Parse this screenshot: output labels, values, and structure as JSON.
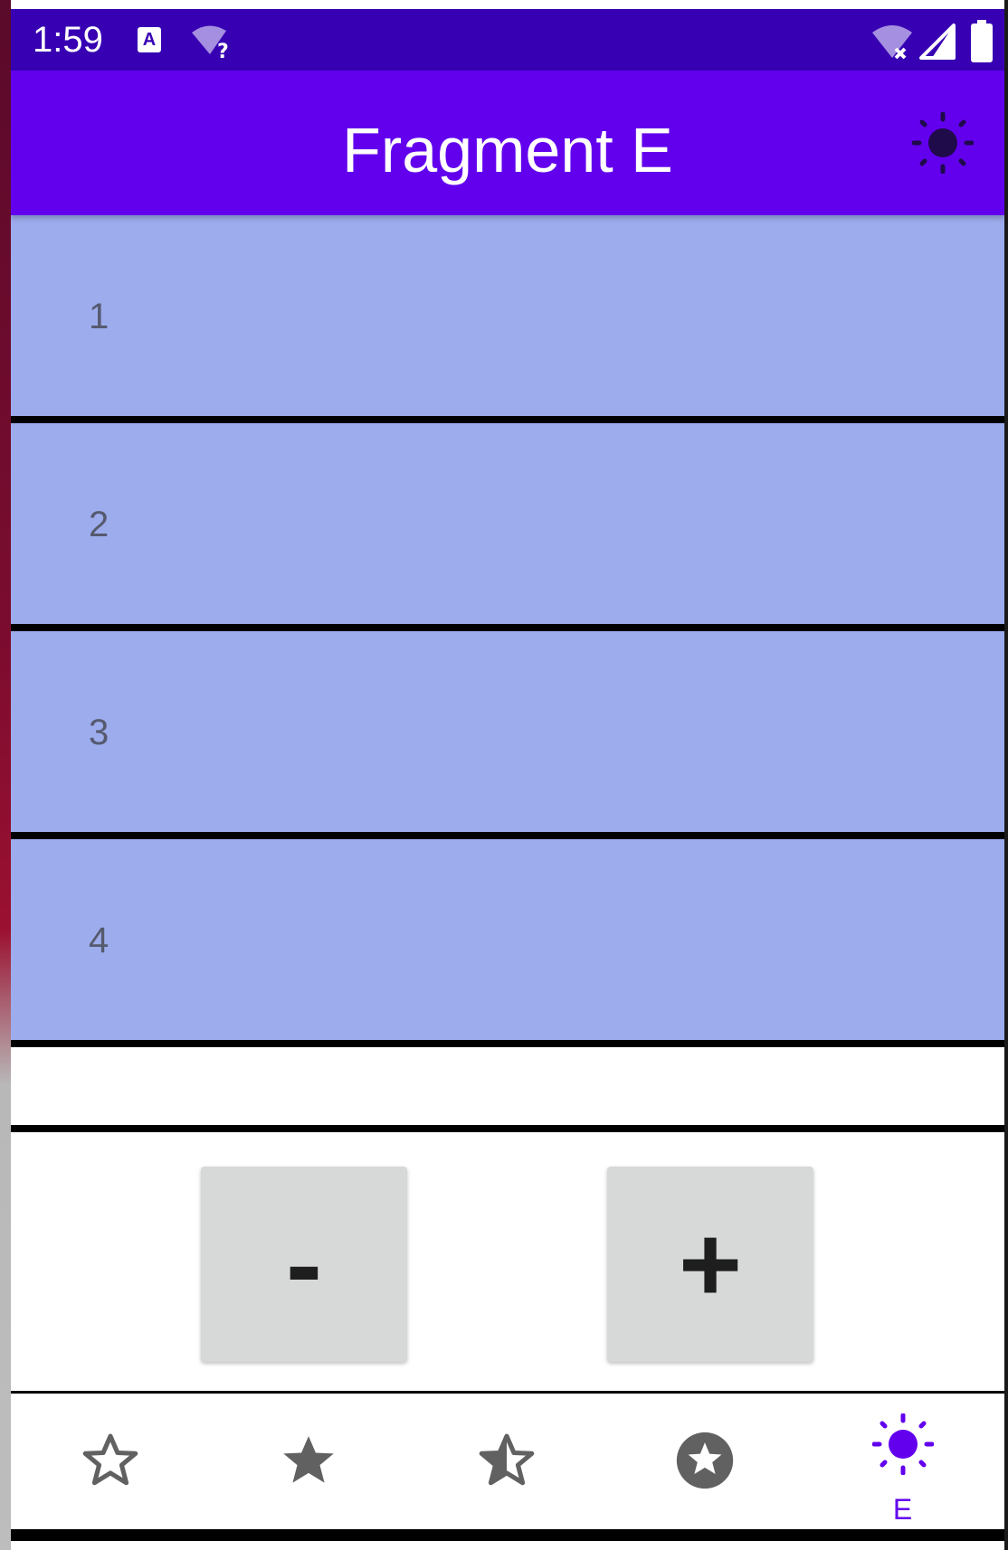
{
  "status_bar": {
    "time": "1:59",
    "icons": [
      "text-a-icon",
      "wifi-question-icon",
      "wifi-off-icon",
      "signal-icon",
      "battery-icon"
    ],
    "background": "#3700b3"
  },
  "app_bar": {
    "title": "Fragment E",
    "action_icon": "sun-icon",
    "background": "#6200ee"
  },
  "list": {
    "items": [
      {
        "label": "1"
      },
      {
        "label": "2"
      },
      {
        "label": "3"
      },
      {
        "label": "4"
      }
    ],
    "item_color": "#9daced"
  },
  "controls": {
    "minus_label": "-",
    "plus_label": "+"
  },
  "bottom_nav": {
    "items": [
      {
        "icon": "star-outline-icon",
        "label": ""
      },
      {
        "icon": "star-filled-icon",
        "label": ""
      },
      {
        "icon": "star-half-icon",
        "label": ""
      },
      {
        "icon": "star-circle-icon",
        "label": ""
      },
      {
        "icon": "sun-icon",
        "label": "E",
        "active": true
      }
    ],
    "active_color": "#6200ee",
    "inactive_color": "#616161"
  }
}
